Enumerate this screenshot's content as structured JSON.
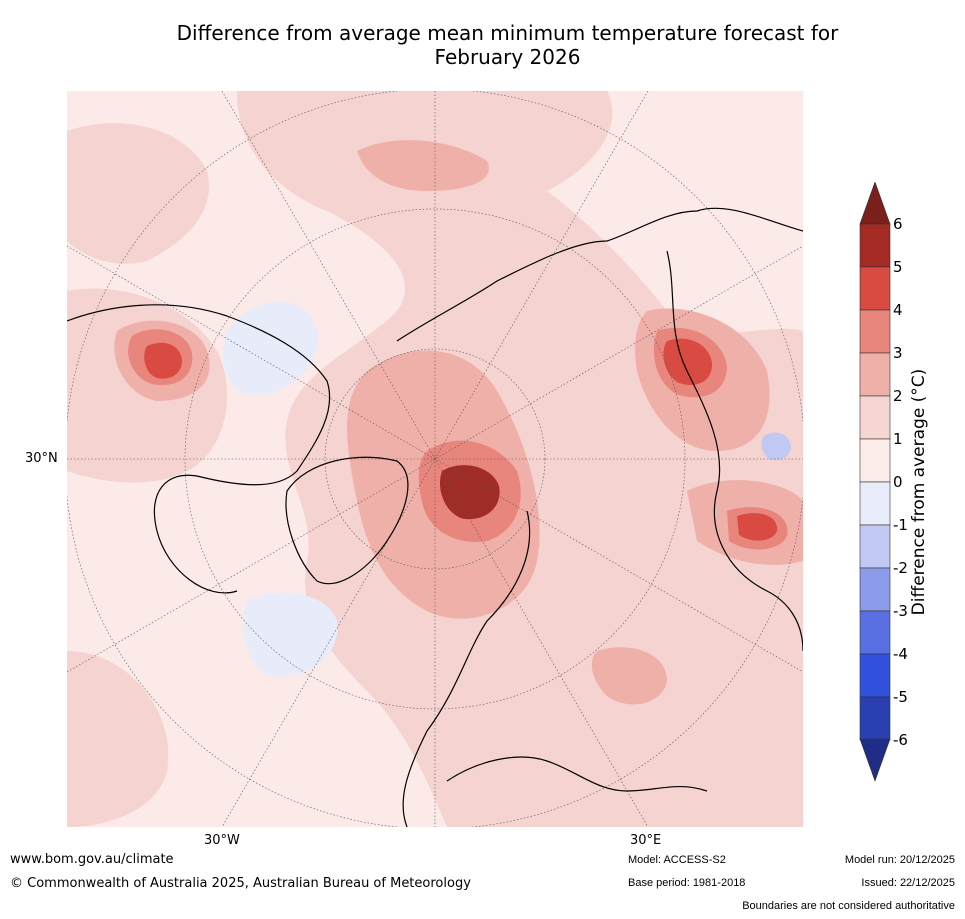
{
  "title_line1": "Difference from average mean minimum temperature forecast for",
  "title_line2": "February 2026",
  "map": {
    "lat_label": "30°N",
    "lon_labels": [
      "30°W",
      "30°E"
    ],
    "background_color": "#fbeae8",
    "regions": [
      {
        "name": "north-pacific-anomaly",
        "class": "1-2",
        "color": "#f4d3d0"
      },
      {
        "name": "arctic-warm-core",
        "class": "5-6",
        "color": "#a02c28"
      },
      {
        "name": "siberia-warm-core",
        "class": "4-5",
        "color": "#d94b42"
      },
      {
        "name": "canada-cool-patch",
        "class": "-1-0",
        "color": "#e8ecfa"
      }
    ]
  },
  "colorbar": {
    "title": "Difference from average (°C)",
    "ticks": [
      "6",
      "5",
      "4",
      "3",
      "2",
      "1",
      "0",
      "-1",
      "-2",
      "-3",
      "-4",
      "-5",
      "-6"
    ],
    "bins": [
      {
        "range": "5 to 6",
        "color": "#a52a24"
      },
      {
        "range": "4 to 5",
        "color": "#d84b40"
      },
      {
        "range": "3 to 4",
        "color": "#e8857c"
      },
      {
        "range": "2 to 3",
        "color": "#efb0aa"
      },
      {
        "range": "1 to 2",
        "color": "#f6d6d2"
      },
      {
        "range": "0 to 1",
        "color": "#fcecea"
      },
      {
        "range": "-1 to 0",
        "color": "#e9edfb"
      },
      {
        "range": "-2 to -1",
        "color": "#c0c8f3"
      },
      {
        "range": "-3 to -2",
        "color": "#8c9bea"
      },
      {
        "range": "-4 to -3",
        "color": "#5a70e2"
      },
      {
        "range": "-5 to -4",
        "color": "#3050de"
      },
      {
        "range": "-6 to -5",
        "color": "#2a3fb0"
      }
    ],
    "over_color": "#7a1f1c",
    "under_color": "#1f2d86"
  },
  "footer": {
    "website": "www.bom.gov.au/climate",
    "copyright": "© Commonwealth of Australia 2025, Australian Bureau of Meteorology",
    "model": "Model: ACCESS-S2",
    "base_period": "Base period: 1981-2018",
    "model_run": "Model run: 20/12/2025",
    "issued": "Issued: 22/12/2025",
    "disclaimer": "Boundaries are not considered authoritative"
  }
}
